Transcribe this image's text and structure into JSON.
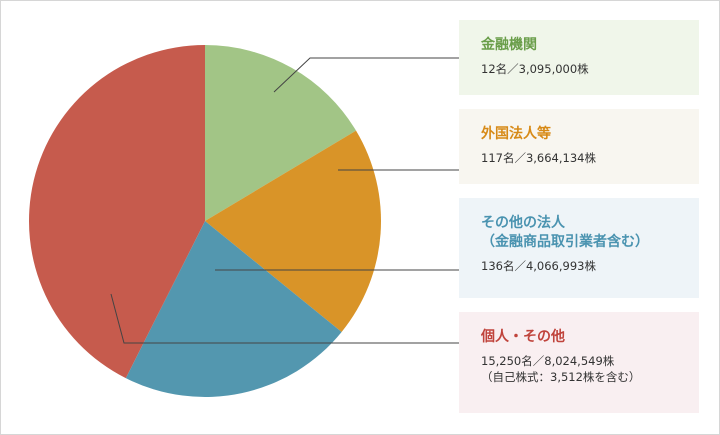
{
  "colors": {
    "financial": "#a2c586",
    "foreign": "#d99428",
    "other_corp": "#5397af",
    "individual": "#c65b4d"
  },
  "chart_data": {
    "type": "pie",
    "unit": "株",
    "start_angle": "12 o'clock",
    "direction": "clockwise",
    "slices": [
      {
        "key": "financial",
        "label": "金融機関",
        "holders": "12名",
        "shares_text": "3,095,000株",
        "value": 3095000,
        "color": "#a2c586",
        "title_color": "#6a9e4a",
        "bg": "#f0f6ea"
      },
      {
        "key": "foreign",
        "label": "外国法人等",
        "holders": "117名",
        "shares_text": "3,664,134株",
        "value": 3664134,
        "color": "#d99428",
        "title_color": "#d78a17",
        "bg": "#f8f6f0"
      },
      {
        "key": "other_corp",
        "label": "その他の法人",
        "label2": "（金融商品取引業者含む）",
        "holders": "136名",
        "shares_text": "4,066,993株",
        "value": 4066993,
        "color": "#5397af",
        "title_color": "#4a93b0",
        "bg": "#eef4f8"
      },
      {
        "key": "individual",
        "label": "個人・その他",
        "holders": "15,250名",
        "shares_text": "8,024,549株",
        "note": "（自己株式：3,512株を含む）",
        "value": 8024549,
        "color": "#c65b4d",
        "title_color": "#c0443c",
        "bg": "#f9eff1"
      }
    ]
  },
  "legend": {
    "separator": "／"
  }
}
